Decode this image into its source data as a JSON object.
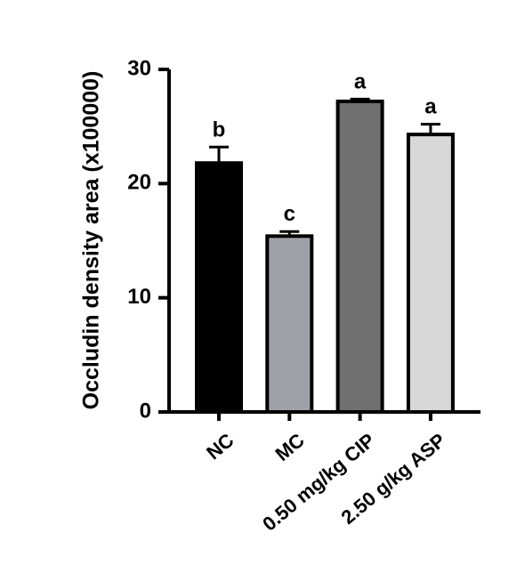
{
  "chart_data": {
    "type": "bar",
    "ylabel": "Occludin density area (x100000)",
    "categories": [
      "NC",
      "MC",
      "0.50 mg/kg CIP",
      "2.50 g/kg ASP"
    ],
    "values": [
      21.8,
      15.4,
      27.2,
      24.3
    ],
    "errors": [
      1.4,
      0.4,
      0.2,
      0.9
    ],
    "letters": [
      "b",
      "c",
      "a",
      "a"
    ],
    "colors": [
      "#000000",
      "#a0a0a8",
      "#707070",
      "#d8d8d8"
    ],
    "ylim": [
      0,
      30
    ],
    "yticks": [
      0,
      10,
      20,
      30
    ],
    "grid": false
  }
}
